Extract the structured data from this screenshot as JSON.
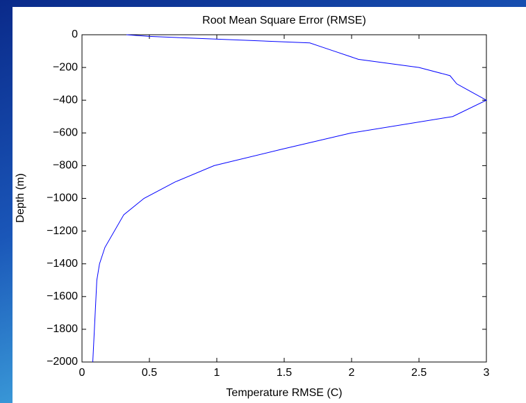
{
  "chart_data": {
    "type": "line",
    "title": "Root Mean Square Error (RMSE)",
    "x_label": "Temperature RMSE (C)",
    "y_label": "Depth (m)",
    "series": [
      {
        "color": "#0000ff",
        "x": [
          0.33,
          0.5,
          1.69,
          1.78,
          1.87,
          2.05,
          2.5,
          2.73,
          2.78,
          3.0,
          2.75,
          2.0,
          1.48,
          0.98,
          0.69,
          0.46,
          0.31,
          0.17,
          0.13,
          0.11,
          0.08
        ],
        "values": [
          0,
          -10,
          -50,
          -75,
          -100,
          -150,
          -200,
          -250,
          -300,
          -400,
          -500,
          -600,
          -700,
          -800,
          -900,
          -1000,
          -1100,
          -1300,
          -1400,
          -1500,
          -2000
        ]
      }
    ],
    "xlim": [
      0,
      3
    ],
    "xticks": [
      0,
      0.5,
      1,
      1.5,
      2,
      2.5,
      3
    ],
    "ylim": [
      -2000,
      0
    ],
    "yticks": [
      {
        "value": -2000,
        "label": "−2000"
      },
      {
        "value": -1800,
        "label": "−1800"
      },
      {
        "value": -1600,
        "label": "−1600"
      },
      {
        "value": -1400,
        "label": "−1400"
      },
      {
        "value": -1200,
        "label": "−1200"
      },
      {
        "value": -1000,
        "label": "−1000"
      },
      {
        "value": -800,
        "label": "−800"
      },
      {
        "value": -600,
        "label": "−600"
      },
      {
        "value": -400,
        "label": "−400"
      },
      {
        "value": -200,
        "label": "−200"
      },
      0
    ],
    "grid": false
  }
}
